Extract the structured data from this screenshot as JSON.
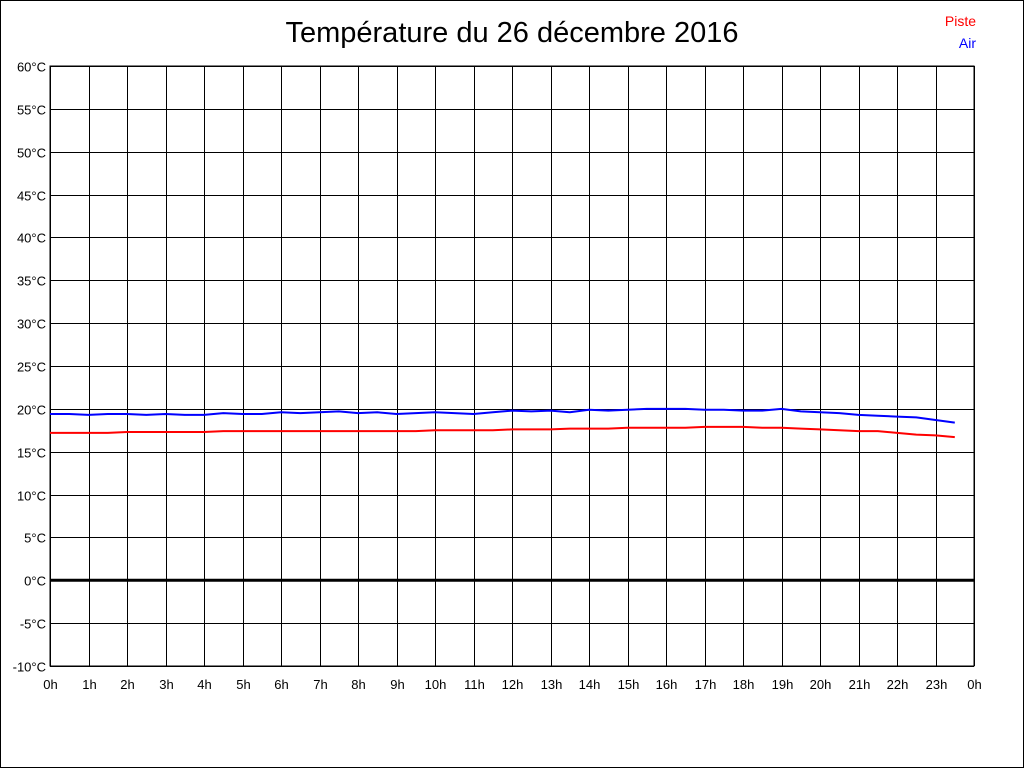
{
  "chart_data": {
    "type": "line",
    "title": "Température du 26 décembre 2016",
    "y_tick_labels": [
      "60°C",
      "55°C",
      "50°C",
      "45°C",
      "40°C",
      "35°C",
      "30°C",
      "25°C",
      "20°C",
      "15°C",
      "10°C",
      "5°C",
      "0°C",
      "-5°C",
      "-10°C"
    ],
    "y_ticks": [
      60,
      55,
      50,
      45,
      40,
      35,
      30,
      25,
      20,
      15,
      10,
      5,
      0,
      -5,
      -10
    ],
    "ylim": [
      -10,
      60
    ],
    "x_tick_labels": [
      "0h",
      "1h",
      "2h",
      "3h",
      "4h",
      "5h",
      "6h",
      "7h",
      "8h",
      "9h",
      "10h",
      "11h",
      "12h",
      "13h",
      "14h",
      "15h",
      "16h",
      "17h",
      "18h",
      "19h",
      "20h",
      "21h",
      "22h",
      "23h",
      "0h"
    ],
    "xlim": [
      0,
      24
    ],
    "grid": true,
    "zero_line": true,
    "legend_position": "top-right",
    "series": [
      {
        "name": "Piste",
        "color": "#ff0000",
        "x": [
          0,
          0.5,
          1,
          1.5,
          2,
          2.5,
          3,
          3.5,
          4,
          4.5,
          5,
          5.5,
          6,
          6.5,
          7,
          7.5,
          8,
          8.5,
          9,
          9.5,
          10,
          10.5,
          11,
          11.5,
          12,
          12.5,
          13,
          13.5,
          14,
          14.5,
          15,
          15.5,
          16,
          16.5,
          17,
          17.5,
          18,
          18.5,
          19,
          19.5,
          20,
          20.5,
          21,
          21.5,
          22,
          22.5,
          23,
          23.5
        ],
        "y": [
          17.2,
          17.2,
          17.2,
          17.2,
          17.3,
          17.3,
          17.3,
          17.3,
          17.3,
          17.4,
          17.4,
          17.4,
          17.4,
          17.4,
          17.4,
          17.4,
          17.4,
          17.4,
          17.4,
          17.4,
          17.5,
          17.5,
          17.5,
          17.5,
          17.6,
          17.6,
          17.6,
          17.7,
          17.7,
          17.7,
          17.8,
          17.8,
          17.8,
          17.8,
          17.9,
          17.9,
          17.9,
          17.8,
          17.8,
          17.7,
          17.6,
          17.5,
          17.4,
          17.4,
          17.2,
          17.0,
          16.9,
          16.7
        ]
      },
      {
        "name": "Air",
        "color": "#0000ff",
        "x": [
          0,
          0.5,
          1,
          1.5,
          2,
          2.5,
          3,
          3.5,
          4,
          4.5,
          5,
          5.5,
          6,
          6.5,
          7,
          7.5,
          8,
          8.5,
          9,
          9.5,
          10,
          10.5,
          11,
          11.5,
          12,
          12.5,
          13,
          13.5,
          14,
          14.5,
          15,
          15.5,
          16,
          16.5,
          17,
          17.5,
          18,
          18.5,
          19,
          19.5,
          20,
          20.5,
          21,
          21.5,
          22,
          22.5,
          23,
          23.5
        ],
        "y": [
          19.4,
          19.4,
          19.3,
          19.4,
          19.4,
          19.3,
          19.4,
          19.3,
          19.3,
          19.5,
          19.4,
          19.4,
          19.6,
          19.5,
          19.6,
          19.7,
          19.5,
          19.6,
          19.4,
          19.5,
          19.6,
          19.5,
          19.4,
          19.6,
          19.8,
          19.7,
          19.8,
          19.6,
          19.9,
          19.8,
          19.9,
          20.0,
          20.0,
          20.0,
          19.9,
          19.9,
          19.8,
          19.8,
          20.0,
          19.7,
          19.6,
          19.5,
          19.3,
          19.2,
          19.1,
          19.0,
          18.7,
          18.4
        ]
      }
    ]
  }
}
